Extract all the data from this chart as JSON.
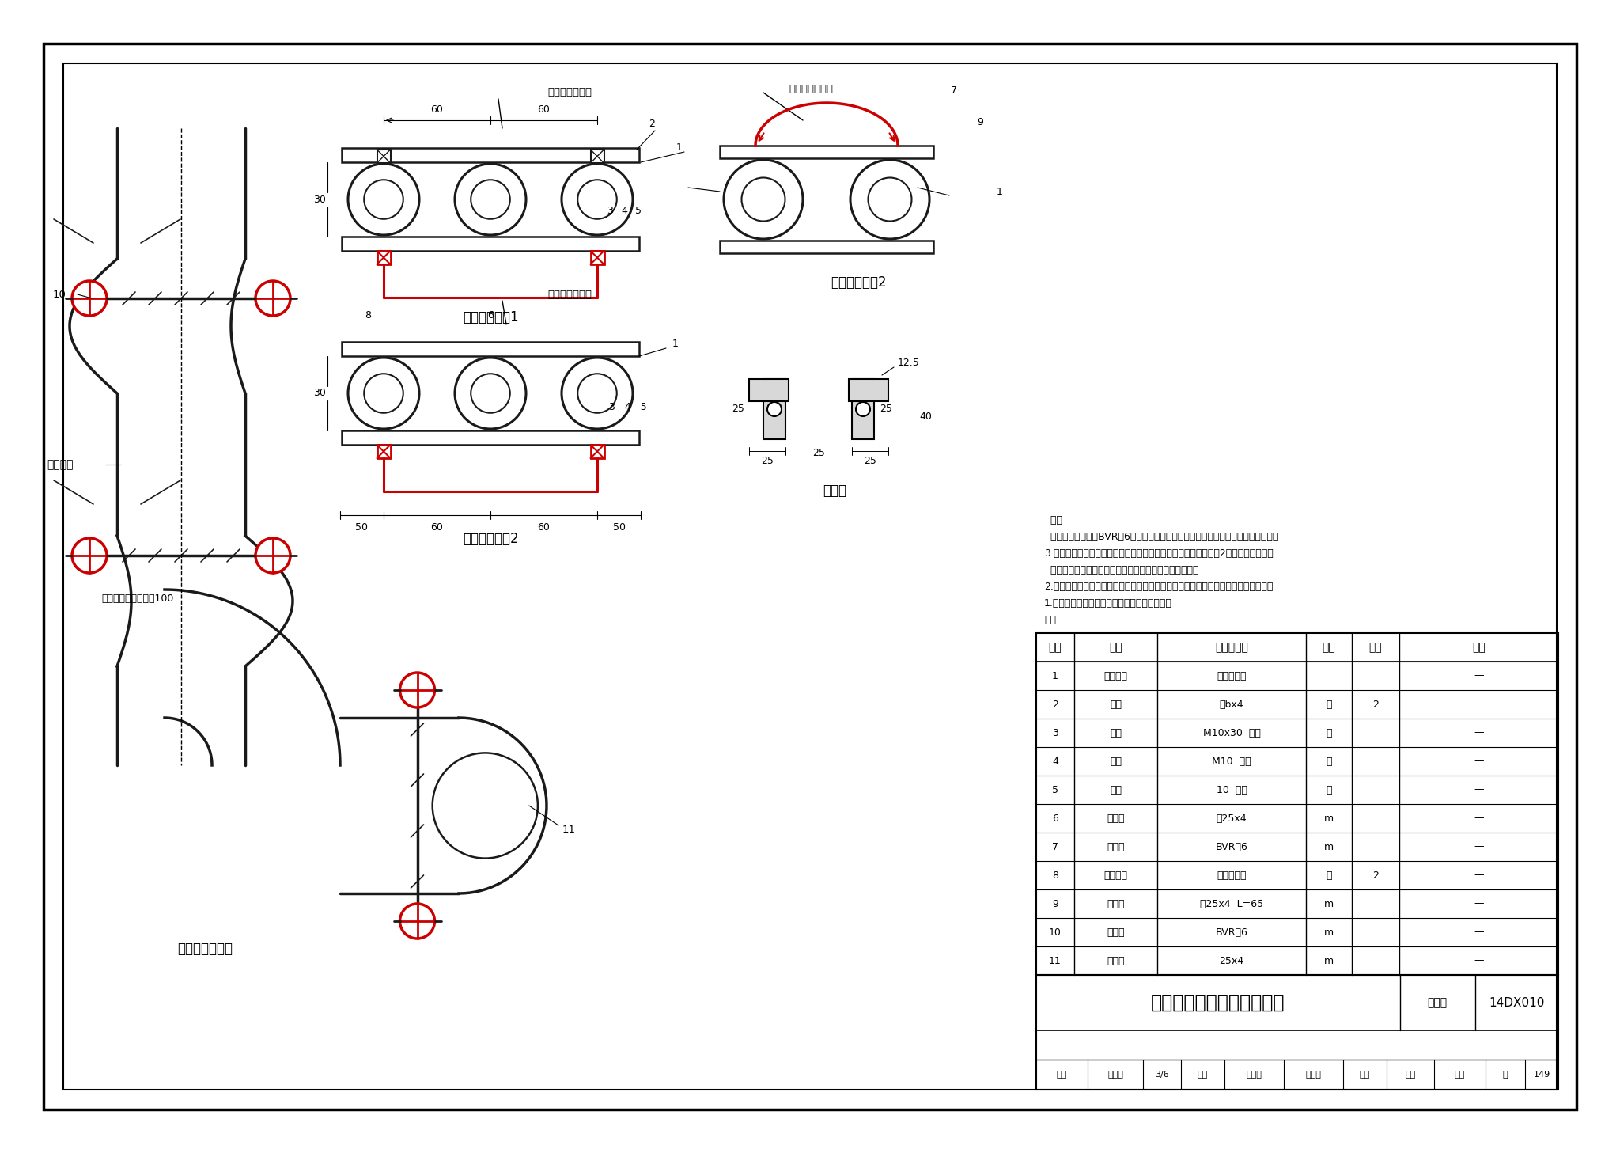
{
  "bg_color": "#ffffff",
  "lc": "#000000",
  "rc": "#cc0000",
  "duct_color": "#1a1a1a",
  "drawing_title": "金属管线、风管接地安装图",
  "atlas_num": "14DX010",
  "page_num": "149",
  "sub_title1": "金属管线方案1",
  "sub_title2": "金属管线方案2",
  "sub_title3": "金属管线方案2",
  "label_fengguanjiedian": "风管接地安装图",
  "label_fengguanfengkou": "风管夹口",
  "label_jiaokou": "夹口锻焊长度不小于100",
  "label_jianjieji": "连接件",
  "label_jiliangbiao": "计量表计或阀门",
  "table_headers": [
    "编号",
    "名称",
    "型号及规格",
    "单位",
    "数量",
    "备注"
  ],
  "table_rows": [
    [
      "1",
      "金属管道",
      "见工程设计",
      "",
      "",
      "—"
    ],
    [
      "2",
      "抱箍",
      "－bx4",
      "个",
      "2",
      "—"
    ],
    [
      "3",
      "螺栓",
      "M10x30  镀锌",
      "个",
      "",
      "—"
    ],
    [
      "4",
      "螺母",
      "M10  镀锌",
      "个",
      "",
      "—"
    ],
    [
      "5",
      "垫圈",
      "10  镀锌",
      "个",
      "",
      "—"
    ],
    [
      "6",
      "跨接线",
      "－25x4",
      "m",
      "",
      "—"
    ],
    [
      "7",
      "跨接线",
      "BVR－6",
      "m",
      "",
      "—"
    ],
    [
      "8",
      "接线鼻子",
      "见工程设计",
      "个",
      "2",
      "—"
    ],
    [
      "9",
      "连接片",
      "－25x4  L=65",
      "m",
      "",
      "—"
    ],
    [
      "10",
      "跨接线",
      "BVR－6",
      "m",
      "",
      "—"
    ],
    [
      "11",
      "接地线",
      "25x4",
      "m",
      "",
      "—"
    ]
  ],
  "notes": [
    "注：",
    "1.本图为供水系统金属管道及风管的接地安装。",
    "2.金属管线搭接与管道接触及的接触表面须处理干净，安装完毕后刷防护漆，搭接内径",
    "  等于管道外径。金属管道与连接件焊接后需做防锈处理。",
    "3.风管焊接工作应在管道涂漆以前进行。每一法兰盘跨接线不少于2个，跨接线长度按",
    "  需要确定。跨接线BVR－6为多股铜芯软线，根据螺栓直径的大小等选环状，擦锡压",
    "  接。"
  ]
}
